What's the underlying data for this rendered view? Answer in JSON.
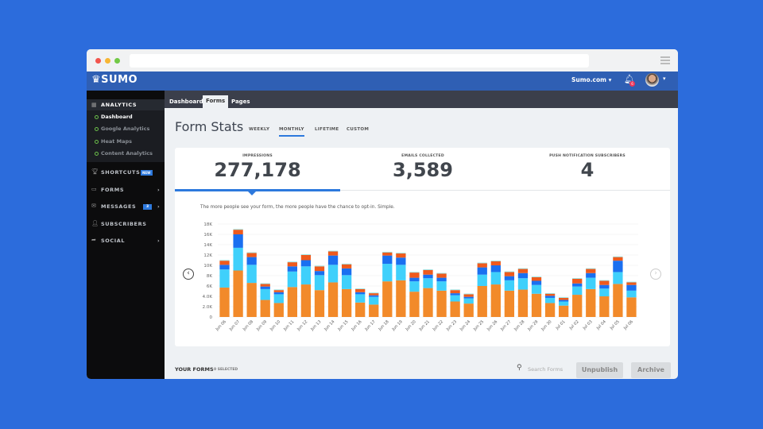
{
  "browser": {
    "menu_icon": "hamburger-icon"
  },
  "header": {
    "logo": "SUMO",
    "site": "Sumo.com",
    "notifications": "6"
  },
  "sidebar": {
    "analytics": "ANALYTICS",
    "sub_items": [
      "Dashboard",
      "Google Analytics",
      "Heat Maps",
      "Content Analytics"
    ],
    "items": [
      {
        "label": "SHORTCUTS",
        "badge": "NEW"
      },
      {
        "label": "FORMS"
      },
      {
        "label": "MESSAGES",
        "badge": "3"
      },
      {
        "label": "SUBSCRIBERS"
      },
      {
        "label": "SOCIAL"
      }
    ]
  },
  "tabs": [
    "Dashboard",
    "Forms",
    "Pages"
  ],
  "main": {
    "title": "Form Stats",
    "periods": [
      "WEEKLY",
      "MONTHLY",
      "LIFETIME",
      "CUSTOM"
    ],
    "active_period": "MONTHLY",
    "stats": [
      {
        "label": "IMPRESSIONS",
        "value": "277,178"
      },
      {
        "label": "EMAILS COLLECTED",
        "value": "3,589"
      },
      {
        "label": "PUSH NOTIFICATION SUBSCRIBERS",
        "value": "4"
      }
    ],
    "note": "The more people see your form, the more people have the chance to opt-in. Simple."
  },
  "footer": {
    "your_forms": "YOUR FORMS",
    "selected": "0 SELECTED",
    "search_placeholder": "Search Forms",
    "unpublish": "Unpublish",
    "archive": "Archive"
  },
  "chart_data": {
    "type": "bar",
    "stacked": true,
    "ylim": [
      0,
      18000
    ],
    "grid": true,
    "yticks": [
      "0",
      "2.0K",
      "4.0K",
      "6K",
      "8K",
      "10K",
      "12K",
      "14K",
      "16K",
      "18K"
    ],
    "categories": [
      "Jun 06",
      "Jun 07",
      "Jun 08",
      "Jun 09",
      "Jun 10",
      "Jun 11",
      "Jun 12",
      "Jun 13",
      "Jun 14",
      "Jun 15",
      "Jun 16",
      "Jun 17",
      "Jun 18",
      "Jun 19",
      "Jun 20",
      "Jun 21",
      "Jun 22",
      "Jun 23",
      "Jun 24",
      "Jun 25",
      "Jun 26",
      "Jun 27",
      "Jun 28",
      "Jun 29",
      "Jun 30",
      "Jul 01",
      "Jul 02",
      "Jul 03",
      "Jul 04",
      "Jul 05",
      "Jul 06"
    ],
    "series": [
      {
        "color": "#f28a2a",
        "values": [
          5700,
          9000,
          6600,
          3300,
          2700,
          5800,
          6300,
          5200,
          6700,
          5400,
          2800,
          2400,
          6900,
          7100,
          4900,
          5600,
          5100,
          3000,
          2600,
          6000,
          6300,
          5100,
          5300,
          4500,
          2700,
          2200,
          4300,
          5400,
          4000,
          6400,
          3800
        ]
      },
      {
        "color": "#3fd0fb",
        "values": [
          3500,
          4400,
          3500,
          2100,
          1700,
          3000,
          3500,
          2900,
          3400,
          2700,
          1600,
          1500,
          3400,
          3000,
          2000,
          1900,
          1800,
          1200,
          1000,
          2200,
          2400,
          2000,
          2200,
          1700,
          1000,
          800,
          1600,
          2200,
          1500,
          2300,
          1300
        ]
      },
      {
        "color": "#1a6ff0",
        "values": [
          900,
          2600,
          1500,
          500,
          400,
          1000,
          1200,
          800,
          1800,
          1300,
          400,
          300,
          1600,
          1400,
          700,
          700,
          700,
          400,
          300,
          1400,
          1300,
          800,
          1000,
          800,
          400,
          300,
          600,
          900,
          700,
          2200,
          1100
        ]
      },
      {
        "color": "#ef5a1c",
        "values": [
          800,
          900,
          800,
          500,
          400,
          800,
          1000,
          900,
          800,
          800,
          600,
          400,
          600,
          800,
          1000,
          900,
          800,
          600,
          500,
          800,
          800,
          800,
          800,
          700,
          400,
          400,
          900,
          800,
          800,
          700,
          500
        ]
      }
    ]
  }
}
